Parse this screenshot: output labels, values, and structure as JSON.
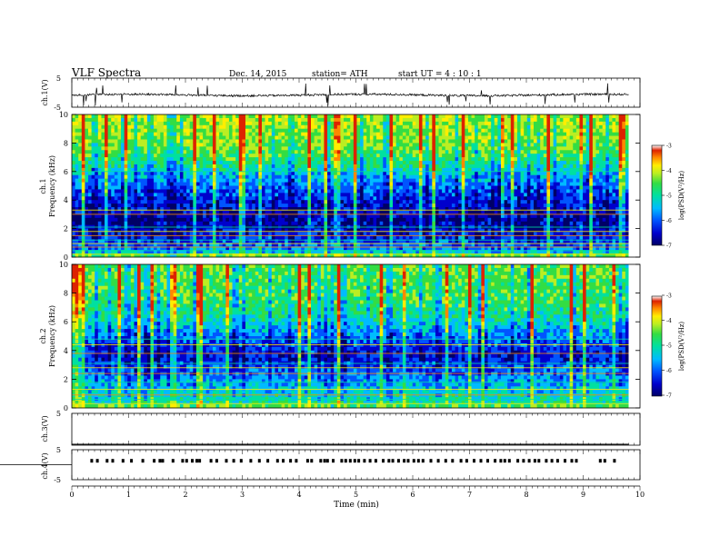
{
  "header": {
    "title": "VLF Spectra",
    "date": "Dec. 14, 2015",
    "station": "station= ATH",
    "start_ut": "start  UT  =   4  : 10 : 1"
  },
  "colors": {
    "axis": "#000000",
    "waveform": "#000000",
    "colormap": [
      "#000066",
      "#0000cc",
      "#0055ff",
      "#00bbff",
      "#00e0a0",
      "#33dd44",
      "#bbee22",
      "#ffee00",
      "#ff8800",
      "#dd2200",
      "#ffffff"
    ]
  },
  "chart_data": [
    {
      "type": "line",
      "panel": "ch1-waveform",
      "ylabel": "ch.1(V)",
      "y_ticks": [
        "5",
        "-5"
      ],
      "ylim": [
        -5,
        5
      ],
      "xlim": [
        0,
        10
      ],
      "baseline_v": -0.8,
      "noise_amplitude_v": 0.7,
      "data_end_min": 9.8
    },
    {
      "type": "heatmap",
      "panel": "ch1-spectrogram",
      "ylabel": "Frequency (kHz)",
      "channel_label": "ch.1",
      "ylim": [
        0,
        10
      ],
      "y_ticks": [
        "0",
        "2",
        "4",
        "6",
        "8",
        "10"
      ],
      "xlim": [
        0,
        10
      ],
      "data_end_min": 9.8,
      "colorbar": {
        "label": "log(PSD(V²/Hz)",
        "range": [
          -7,
          -3
        ],
        "ticks": [
          "-3",
          "-4",
          "-5",
          "-6",
          "-7"
        ]
      },
      "background_profile": {
        "freq_khz": [
          0,
          0.5,
          1.5,
          2.5,
          3.5,
          4.5,
          5.5,
          6.5,
          7.5,
          8.5,
          9.5,
          10
        ],
        "log_psd": [
          -4.4,
          -5.8,
          -6.3,
          -6.6,
          -6.4,
          -6.1,
          -5.7,
          -5.1,
          -4.7,
          -4.5,
          -4.4,
          -4.4
        ]
      },
      "narrowband_lines_khz": [
        0.2,
        0.45,
        0.7,
        0.95,
        1.2,
        1.5,
        1.8,
        2.1,
        3.0,
        3.3,
        6.0
      ]
    },
    {
      "type": "heatmap",
      "panel": "ch2-spectrogram",
      "ylabel": "Frequency (kHz)",
      "channel_label": "ch.2",
      "ylim": [
        0,
        10
      ],
      "y_ticks": [
        "0",
        "2",
        "4",
        "6",
        "8",
        "10"
      ],
      "xlim": [
        0,
        10
      ],
      "data_end_min": 9.8,
      "colorbar": {
        "label": "log(PSD(V²/Hz)",
        "range": [
          -7,
          -3
        ],
        "ticks": [
          "-3",
          "-4",
          "-5",
          "-6",
          "-7"
        ]
      },
      "background_profile": {
        "freq_khz": [
          0,
          0.5,
          1.5,
          2.5,
          3.5,
          4.5,
          5.5,
          6.5,
          7.5,
          8.5,
          9.5,
          10
        ],
        "log_psd": [
          -4.6,
          -5.2,
          -5.6,
          -5.9,
          -6.3,
          -6.1,
          -5.6,
          -5.1,
          -4.9,
          -4.8,
          -4.7,
          -4.7
        ]
      },
      "narrowband_lines_khz": [
        0.3,
        0.6,
        0.9,
        1.3,
        1.8,
        2.4,
        2.8,
        3.1,
        3.8,
        4.4,
        4.8
      ]
    },
    {
      "type": "line",
      "panel": "ch3-waveform",
      "ylabel": "ch.3(V)",
      "y_ticks": [
        "5"
      ],
      "ylim": [
        -5,
        5
      ],
      "xlim": [
        0,
        10
      ],
      "baseline_v": -5,
      "data_end_min": 9.8
    },
    {
      "type": "scatter",
      "panel": "ch4-waveform",
      "ylabel": "ch.4(V)",
      "y_ticks": [
        "5",
        "-5"
      ],
      "ylim": [
        -5,
        5
      ],
      "xlim": [
        0,
        10
      ],
      "xlabel": "Time  (min)",
      "x_ticks": [
        "0",
        "1",
        "2",
        "3",
        "4",
        "5",
        "6",
        "7",
        "8",
        "9",
        "10"
      ],
      "baseline_v": 0,
      "pulse_level_v": 1.3,
      "pulse_times_min": [
        0.35,
        0.45,
        0.62,
        0.72,
        0.9,
        1.05,
        1.25,
        1.45,
        1.55,
        1.6,
        1.78,
        1.95,
        2.02,
        2.12,
        2.2,
        2.25,
        2.45,
        2.55,
        2.72,
        2.85,
        2.98,
        3.15,
        3.3,
        3.45,
        3.62,
        3.72,
        3.85,
        3.95,
        4.15,
        4.22,
        4.38,
        4.45,
        4.5,
        4.6,
        4.75,
        4.82,
        4.9,
        4.98,
        5.05,
        5.15,
        5.25,
        5.35,
        5.48,
        5.58,
        5.65,
        5.75,
        5.85,
        5.92,
        6.02,
        6.1,
        6.18,
        6.32,
        6.45,
        6.58,
        6.7,
        6.85,
        6.95,
        7.08,
        7.2,
        7.32,
        7.45,
        7.55,
        7.62,
        7.7,
        7.85,
        7.95,
        8.05,
        8.15,
        8.22,
        8.35,
        8.45,
        8.55,
        8.68,
        8.8,
        8.88,
        9.3,
        9.38,
        9.55
      ]
    }
  ]
}
